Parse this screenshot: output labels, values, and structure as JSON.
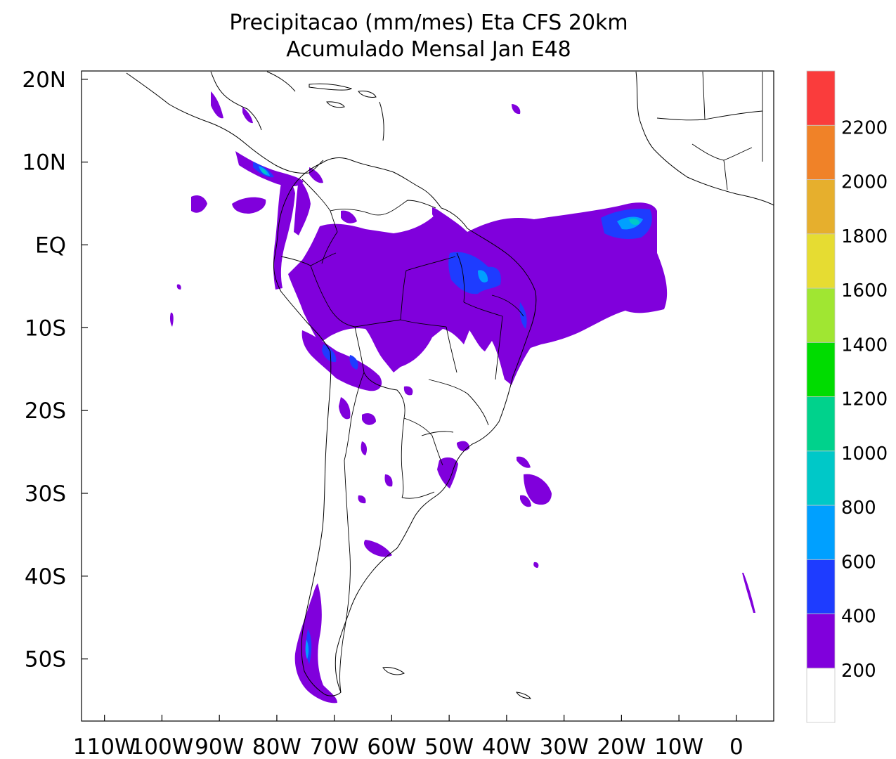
{
  "title": {
    "line1": "Precipitacao (mm/mes) Eta CFS 20km",
    "line2": "Acumulado Mensal Jan  E48"
  },
  "axes": {
    "x_ticks": [
      "110W",
      "100W",
      "90W",
      "80W",
      "70W",
      "60W",
      "50W",
      "40W",
      "30W",
      "20W",
      "10W",
      "0"
    ],
    "x_lon": [
      -110,
      -100,
      -90,
      -80,
      -70,
      -60,
      -50,
      -40,
      -30,
      -20,
      -10,
      0
    ],
    "y_ticks": [
      "20N",
      "10N",
      "EQ",
      "10S",
      "20S",
      "30S",
      "40S",
      "50S"
    ],
    "y_lat": [
      20,
      10,
      0,
      -10,
      -20,
      -30,
      -40,
      -50
    ],
    "lon_range": [
      -114,
      6.5
    ],
    "lat_range": [
      -57.5,
      21
    ]
  },
  "colorbar": {
    "labels": [
      "200",
      "400",
      "600",
      "800",
      "1000",
      "1200",
      "1400",
      "1600",
      "1800",
      "2000",
      "2200"
    ],
    "colors": [
      "#ffffff",
      "#8000dc",
      "#1e3cff",
      "#00a0ff",
      "#00c8c8",
      "#00d28c",
      "#00dc00",
      "#a0e632",
      "#e6dc32",
      "#e6af2d",
      "#f08228",
      "#fa3c3c"
    ]
  }
}
